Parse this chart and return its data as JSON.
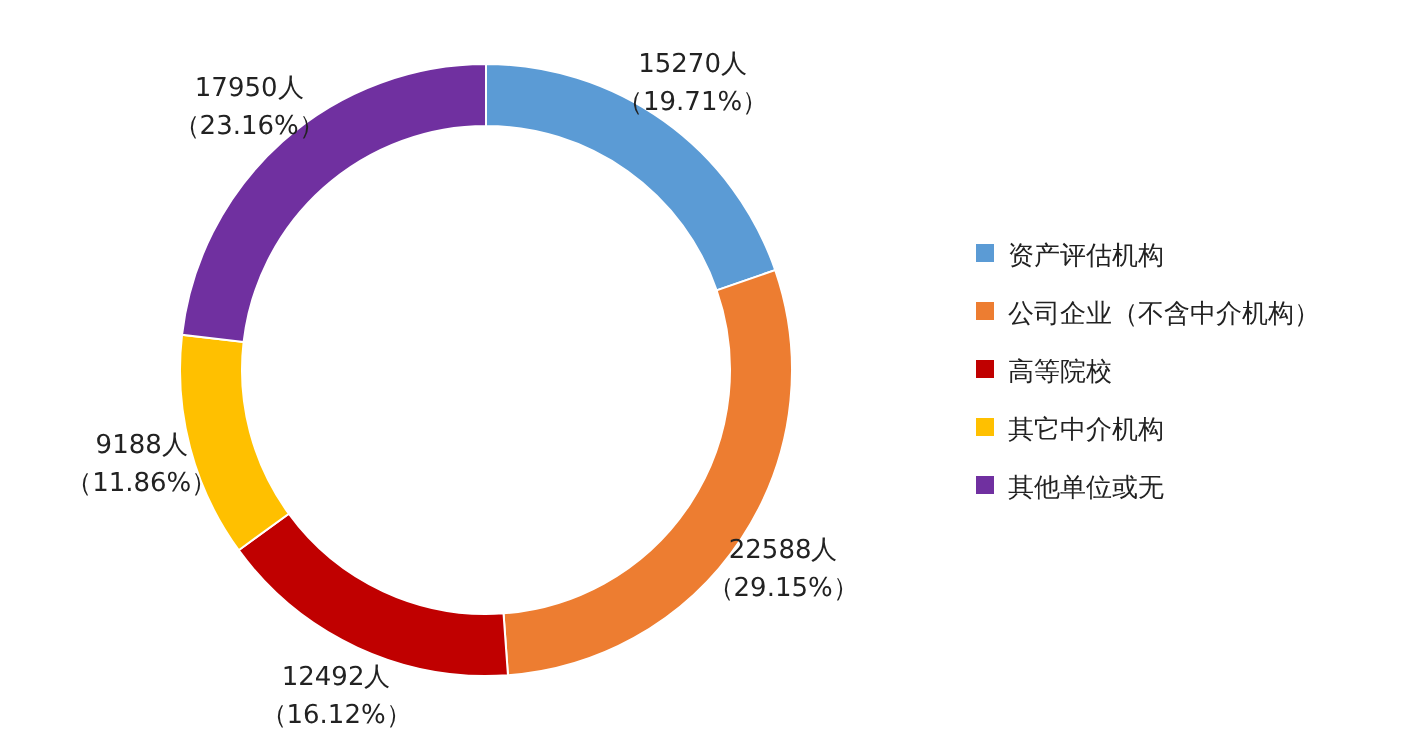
{
  "chart_data": {
    "type": "donut",
    "categories": [
      "资产评估机构",
      "公司企业（不含中介机构）",
      "高等院校",
      "其它中介机构",
      "其他单位或无"
    ],
    "values": [
      15270,
      22588,
      12492,
      9188,
      17950
    ],
    "colors": [
      "#5b9bd5",
      "#ed7d31",
      "#c00000",
      "#ffc000",
      "#7030a0"
    ],
    "value_labels": [
      "15270人（19.71%）",
      "22588人（29.15%）",
      "12492人（16.12%）",
      "9188人（11.86%）",
      "17950人（23.16%）"
    ],
    "legend": "right"
  }
}
